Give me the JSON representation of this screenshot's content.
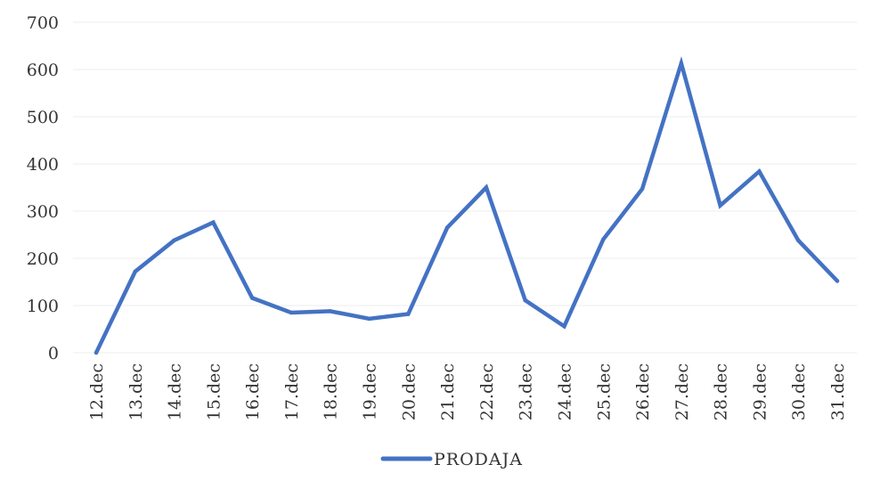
{
  "chart_data": {
    "type": "line",
    "categories": [
      "12.dec",
      "13.dec",
      "14.dec",
      "15.dec",
      "16.dec",
      "17.dec",
      "18.dec",
      "19.dec",
      "20.dec",
      "21.dec",
      "22.dec",
      "23.dec",
      "24.dec",
      "25.dec",
      "26.dec",
      "27.dec",
      "28.dec",
      "29.dec",
      "30.dec",
      "31.dec"
    ],
    "series": [
      {
        "name": "PRODAJA",
        "color": "#4472c4",
        "values": [
          0,
          172,
          238,
          276,
          116,
          85,
          88,
          72,
          82,
          265,
          350,
          111,
          56,
          240,
          347,
          613,
          312,
          384,
          238,
          152
        ]
      }
    ],
    "y_ticks": [
      0,
      100,
      200,
      300,
      400,
      500,
      600,
      700
    ],
    "ylim": [
      0,
      700
    ],
    "grid": true,
    "legend_position": "bottom-center"
  }
}
